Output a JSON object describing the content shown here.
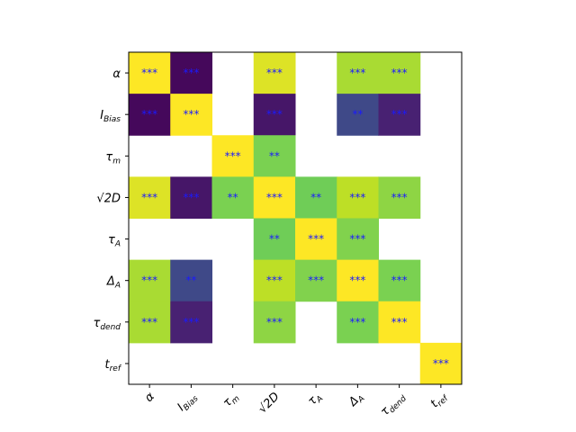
{
  "chart_data": {
    "type": "heatmap",
    "title": "",
    "colormap": "viridis",
    "vlim": [
      -1,
      1
    ],
    "labels": [
      {
        "base": "α",
        "sub": ""
      },
      {
        "base": "I",
        "sub": "Bias"
      },
      {
        "base": "τ",
        "sub": "m"
      },
      {
        "base": "√2D",
        "sub": ""
      },
      {
        "base": "τ",
        "sub": "A"
      },
      {
        "base": "Δ",
        "sub": "A"
      },
      {
        "base": "τ",
        "sub": "dend"
      },
      {
        "base": "t",
        "sub": "ref"
      }
    ],
    "values": [
      [
        1,
        -0.96,
        null,
        0.9,
        null,
        0.74,
        0.74,
        null
      ],
      [
        -0.96,
        1,
        null,
        -0.88,
        null,
        -0.56,
        -0.82,
        null
      ],
      [
        null,
        null,
        1,
        0.6,
        null,
        null,
        null,
        null
      ],
      [
        0.9,
        -0.88,
        0.6,
        1,
        0.56,
        0.8,
        0.66,
        null
      ],
      [
        null,
        null,
        null,
        0.56,
        1,
        0.62,
        null,
        null
      ],
      [
        0.74,
        -0.56,
        null,
        0.8,
        0.62,
        1,
        0.6,
        null
      ],
      [
        0.74,
        -0.82,
        null,
        0.66,
        null,
        0.6,
        1,
        null
      ],
      [
        null,
        null,
        null,
        null,
        null,
        null,
        null,
        1
      ]
    ],
    "annotations": [
      [
        "***",
        "***",
        null,
        "***",
        null,
        "***",
        "***",
        null
      ],
      [
        "***",
        "***",
        null,
        "***",
        null,
        "**",
        "***",
        null
      ],
      [
        null,
        null,
        "***",
        "**",
        null,
        null,
        null,
        null
      ],
      [
        "***",
        "***",
        "**",
        "***",
        "**",
        "***",
        "***",
        null
      ],
      [
        null,
        null,
        null,
        "**",
        "***",
        "***",
        null,
        null
      ],
      [
        "***",
        "**",
        null,
        "***",
        "***",
        "***",
        "***",
        null
      ],
      [
        "***",
        "***",
        null,
        "***",
        null,
        "***",
        "***",
        null
      ],
      [
        null,
        null,
        null,
        null,
        null,
        null,
        null,
        "***"
      ]
    ],
    "annotation_color": "#1a1aff"
  }
}
